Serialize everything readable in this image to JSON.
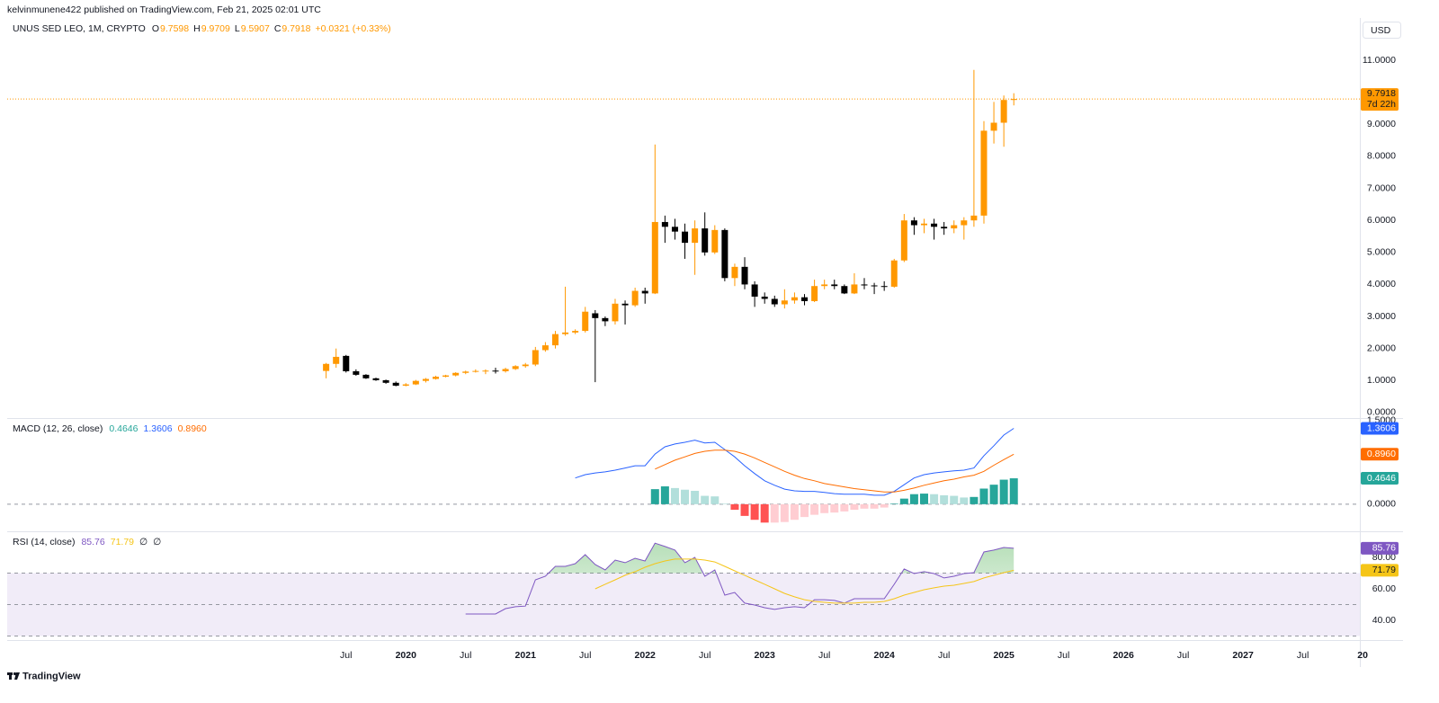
{
  "header": {
    "published": "kelvinmunene422 published on TradingView.com, Feb 21, 2025 02:01 UTC"
  },
  "footer": {
    "brand": "TradingView"
  },
  "chart_data": [
    {
      "type": "candlestick",
      "title": "UNUS SED LEO, 1M, CRYPTO",
      "ohlc_labels": [
        "O",
        "H",
        "L",
        "C"
      ],
      "change": "+0.0321 (+0.33%)",
      "currency": "USD",
      "countdown": "7d 22h",
      "x": [
        "2019-05",
        "2019-06",
        "2019-07",
        "2019-08",
        "2019-09",
        "2019-10",
        "2019-11",
        "2019-12",
        "2020-01",
        "2020-02",
        "2020-03",
        "2020-04",
        "2020-05",
        "2020-06",
        "2020-07",
        "2020-08",
        "2020-09",
        "2020-10",
        "2020-11",
        "2020-12",
        "2021-01",
        "2021-02",
        "2021-03",
        "2021-04",
        "2021-05",
        "2021-06",
        "2021-07",
        "2021-08",
        "2021-09",
        "2021-10",
        "2021-11",
        "2021-12",
        "2022-01",
        "2022-02",
        "2022-03",
        "2022-04",
        "2022-05",
        "2022-06",
        "2022-07",
        "2022-08",
        "2022-09",
        "2022-10",
        "2022-11",
        "2022-12",
        "2023-01",
        "2023-02",
        "2023-03",
        "2023-04",
        "2023-05",
        "2023-06",
        "2023-07",
        "2023-08",
        "2023-09",
        "2023-10",
        "2023-11",
        "2023-12",
        "2024-01",
        "2024-02",
        "2024-03",
        "2024-04",
        "2024-05",
        "2024-06",
        "2024-07",
        "2024-08",
        "2024-09",
        "2024-10",
        "2024-11",
        "2024-12",
        "2025-01",
        "2025-02"
      ],
      "open": [
        1.3,
        1.52,
        1.77,
        1.29,
        1.18,
        1.07,
        1.01,
        0.93,
        0.84,
        0.88,
        0.99,
        1.05,
        1.12,
        1.16,
        1.24,
        1.28,
        1.3,
        1.31,
        1.29,
        1.36,
        1.45,
        1.5,
        1.95,
        2.1,
        2.45,
        2.5,
        2.55,
        3.1,
        2.95,
        2.85,
        3.4,
        3.35,
        3.8,
        3.72,
        5.95,
        5.8,
        5.65,
        5.3,
        5.75,
        5.0,
        5.7,
        4.2,
        4.55,
        4.0,
        3.62,
        3.55,
        3.38,
        3.5,
        3.6,
        3.48,
        3.95,
        4.0,
        3.95,
        3.72,
        4.0,
        3.97,
        3.95,
        3.93,
        4.75,
        6.0,
        5.85,
        5.9,
        5.8,
        5.75,
        5.85,
        6.0,
        6.15,
        8.8,
        9.05,
        9.7598
      ],
      "high": [
        1.55,
        2.0,
        1.8,
        1.35,
        1.2,
        1.09,
        1.03,
        0.97,
        0.92,
        1.02,
        1.08,
        1.15,
        1.18,
        1.26,
        1.31,
        1.35,
        1.35,
        1.4,
        1.4,
        1.48,
        1.55,
        2.05,
        2.2,
        2.55,
        3.93,
        2.6,
        3.3,
        3.2,
        3.0,
        3.55,
        3.5,
        3.9,
        3.9,
        8.37,
        6.15,
        6.05,
        5.9,
        6.0,
        6.25,
        5.85,
        5.75,
        4.65,
        4.85,
        4.1,
        3.75,
        3.65,
        3.85,
        3.75,
        3.7,
        4.15,
        4.15,
        4.15,
        4.0,
        4.35,
        4.2,
        4.05,
        4.1,
        4.8,
        6.2,
        6.1,
        6.05,
        6.05,
        5.95,
        6.0,
        6.1,
        10.7,
        9.1,
        9.7,
        9.9,
        9.9709
      ],
      "low": [
        1.07,
        1.4,
        1.25,
        1.15,
        1.05,
        0.99,
        0.9,
        0.82,
        0.82,
        0.86,
        0.94,
        1.03,
        1.1,
        1.13,
        1.2,
        1.25,
        1.2,
        1.22,
        1.25,
        1.33,
        1.4,
        1.45,
        1.9,
        2.0,
        2.4,
        2.45,
        2.5,
        0.95,
        2.7,
        2.75,
        2.75,
        3.3,
        3.4,
        3.7,
        5.3,
        5.4,
        4.8,
        4.3,
        4.9,
        4.95,
        4.1,
        3.95,
        3.85,
        3.3,
        3.4,
        3.3,
        3.25,
        3.4,
        3.35,
        3.45,
        3.85,
        3.85,
        3.7,
        3.7,
        3.85,
        3.7,
        3.8,
        3.9,
        4.7,
        5.55,
        5.6,
        5.4,
        5.55,
        5.6,
        5.4,
        5.8,
        5.9,
        8.4,
        8.3,
        9.5907
      ],
      "close": [
        1.52,
        1.74,
        1.29,
        1.18,
        1.07,
        1.01,
        0.93,
        0.84,
        0.88,
        0.99,
        1.05,
        1.12,
        1.16,
        1.24,
        1.28,
        1.3,
        1.31,
        1.29,
        1.36,
        1.45,
        1.5,
        1.95,
        2.1,
        2.45,
        2.5,
        2.55,
        3.15,
        2.95,
        2.85,
        3.4,
        3.35,
        3.8,
        3.72,
        5.95,
        5.8,
        5.65,
        5.3,
        5.75,
        5.0,
        5.7,
        4.2,
        4.55,
        4.0,
        3.62,
        3.55,
        3.38,
        3.5,
        3.6,
        3.48,
        3.95,
        4.0,
        3.95,
        3.72,
        4.0,
        3.97,
        3.95,
        3.93,
        4.75,
        6.0,
        5.85,
        5.9,
        5.8,
        5.75,
        5.85,
        6.0,
        6.15,
        8.8,
        9.05,
        9.76,
        9.7918
      ],
      "up_color": "#ff9800",
      "down_color": "#000000",
      "xlim": [
        "2016-09",
        "2027-12"
      ],
      "xticks": [
        {
          "value": "2019-07",
          "label": "Jul"
        },
        {
          "value": "2020-01",
          "label": "2020"
        },
        {
          "value": "2020-07",
          "label": "Jul"
        },
        {
          "value": "2021-01",
          "label": "2021"
        },
        {
          "value": "2021-07",
          "label": "Jul"
        },
        {
          "value": "2022-01",
          "label": "2022"
        },
        {
          "value": "2022-07",
          "label": "Jul"
        },
        {
          "value": "2023-01",
          "label": "2023"
        },
        {
          "value": "2023-07",
          "label": "Jul"
        },
        {
          "value": "2024-01",
          "label": "2024"
        },
        {
          "value": "2024-07",
          "label": "Jul"
        },
        {
          "value": "2025-01",
          "label": "2025"
        },
        {
          "value": "2025-07",
          "label": "Jul"
        },
        {
          "value": "2026-01",
          "label": "2026"
        },
        {
          "value": "2026-07",
          "label": "Jul"
        },
        {
          "value": "2027-01",
          "label": "2027"
        },
        {
          "value": "2027-07",
          "label": "Jul"
        },
        {
          "value": "2028-01",
          "label": "20"
        }
      ],
      "ylim": [
        -0.17,
        12.32
      ],
      "yticks": [
        {
          "value": 0,
          "label": "0.0000"
        },
        {
          "value": 1,
          "label": "1.0000"
        },
        {
          "value": 2,
          "label": "2.0000"
        },
        {
          "value": 3,
          "label": "3.0000"
        },
        {
          "value": 4,
          "label": "4.0000"
        },
        {
          "value": 5,
          "label": "5.0000"
        },
        {
          "value": 6,
          "label": "6.0000"
        },
        {
          "value": 7,
          "label": "7.0000"
        },
        {
          "value": 8,
          "label": "8.0000"
        },
        {
          "value": 9,
          "label": "9.0000"
        },
        {
          "value": 10,
          "label": "10.0000"
        },
        {
          "value": 11,
          "label": "11.0000"
        }
      ]
    },
    {
      "type": "macd",
      "title": "MACD (12, 26, close)",
      "histogram": {
        "colors": [
          "#26a69a",
          "#b2dfdb",
          "#ffcdd2",
          "#ff5252"
        ],
        "values": [
          null,
          null,
          null,
          null,
          null,
          null,
          null,
          null,
          null,
          null,
          null,
          null,
          null,
          null,
          null,
          null,
          null,
          null,
          null,
          null,
          null,
          null,
          null,
          null,
          null,
          null,
          null,
          null,
          null,
          null,
          null,
          null,
          null,
          0.27,
          0.32,
          0.29,
          0.26,
          0.24,
          0.15,
          0.14,
          0.01,
          -0.1,
          -0.21,
          -0.28,
          -0.33,
          -0.33,
          -0.32,
          -0.28,
          -0.23,
          -0.19,
          -0.16,
          -0.15,
          -0.13,
          -0.1,
          -0.08,
          -0.08,
          -0.06,
          0.01,
          0.1,
          0.18,
          0.19,
          0.18,
          0.16,
          0.15,
          0.12,
          0.13,
          0.28,
          0.35,
          0.44,
          0.4646
        ]
      },
      "macd": {
        "color": "#2962ff",
        "values": [
          null,
          null,
          null,
          null,
          null,
          null,
          null,
          null,
          null,
          null,
          null,
          null,
          null,
          null,
          null,
          null,
          null,
          null,
          null,
          null,
          null,
          null,
          null,
          null,
          null,
          0.47,
          0.53,
          0.56,
          0.58,
          0.61,
          0.65,
          0.69,
          0.69,
          0.9,
          1.03,
          1.08,
          1.11,
          1.15,
          1.1,
          1.11,
          0.98,
          0.85,
          0.69,
          0.55,
          0.42,
          0.34,
          0.27,
          0.24,
          0.23,
          0.23,
          0.21,
          0.19,
          0.18,
          0.18,
          0.18,
          0.16,
          0.16,
          0.23,
          0.35,
          0.47,
          0.53,
          0.56,
          0.58,
          0.6,
          0.61,
          0.65,
          0.87,
          1.05,
          1.24,
          1.3606
        ]
      },
      "signal": {
        "color": "#ff6d00",
        "values": [
          null,
          null,
          null,
          null,
          null,
          null,
          null,
          null,
          null,
          null,
          null,
          null,
          null,
          null,
          null,
          null,
          null,
          null,
          null,
          null,
          null,
          null,
          null,
          null,
          null,
          null,
          null,
          null,
          null,
          null,
          null,
          null,
          null,
          0.63,
          0.71,
          0.79,
          0.85,
          0.91,
          0.95,
          0.97,
          0.97,
          0.95,
          0.9,
          0.83,
          0.75,
          0.67,
          0.59,
          0.52,
          0.46,
          0.42,
          0.37,
          0.34,
          0.31,
          0.28,
          0.26,
          0.24,
          0.22,
          0.22,
          0.25,
          0.29,
          0.34,
          0.38,
          0.42,
          0.45,
          0.49,
          0.52,
          0.59,
          0.7,
          0.8,
          0.896
        ],
        "value_labels": [
          null,
          null,
          null,
          null,
          null,
          null,
          null,
          null,
          null,
          null,
          null,
          null,
          null,
          null,
          null,
          null,
          null,
          null,
          null,
          null,
          null,
          null,
          null,
          null,
          null,
          null,
          null,
          null,
          null,
          null,
          null,
          null,
          null,
          null,
          null,
          null,
          null,
          null,
          null,
          null,
          null,
          null,
          null,
          null,
          null,
          null,
          null,
          null,
          null,
          null,
          null,
          null,
          null,
          null,
          null,
          null,
          null,
          null,
          null,
          null,
          null,
          null,
          null,
          null,
          null,
          null,
          null,
          null,
          null,
          "0.8960"
        ]
      },
      "ylim": [
        -0.47,
        1.53
      ],
      "yticks": [
        {
          "value": 1.5,
          "label": "1.5000"
        },
        {
          "value": 0,
          "label": "0.0000"
        }
      ],
      "zero_line": true
    },
    {
      "type": "rsi",
      "title": "RSI (14, close)",
      "rsi": {
        "color": "#7e57c2",
        "values": [
          null,
          null,
          null,
          null,
          null,
          null,
          null,
          null,
          null,
          null,
          null,
          null,
          null,
          null,
          44,
          44,
          44,
          44,
          47.4,
          48.6,
          49,
          65.7,
          68,
          74.3,
          74.3,
          76,
          81.7,
          75.4,
          72,
          78.3,
          76.6,
          79.4,
          77.7,
          89,
          86.9,
          84.6,
          76.6,
          80,
          68,
          72,
          56,
          57.7,
          50.9,
          49.7,
          48,
          46.9,
          48,
          48.6,
          48,
          53.1,
          53.1,
          52.6,
          50.9,
          53.7,
          53.7,
          53.7,
          53.7,
          62.9,
          72.6,
          69.7,
          70.9,
          69.7,
          66.9,
          68,
          69.7,
          70.3,
          83.4,
          84.6,
          86.3,
          85.76
        ]
      },
      "ma": {
        "color": "#f5c518",
        "values": [
          null,
          null,
          null,
          null,
          null,
          null,
          null,
          null,
          null,
          null,
          null,
          null,
          null,
          null,
          null,
          null,
          null,
          null,
          null,
          null,
          null,
          null,
          null,
          null,
          null,
          null,
          null,
          60,
          62.9,
          65.7,
          68.6,
          70.9,
          73.7,
          76,
          77.7,
          78.9,
          78.9,
          78.9,
          78.3,
          77.1,
          74.3,
          71.4,
          68.6,
          65.7,
          62.9,
          60,
          57.1,
          54.9,
          53.1,
          52,
          51.4,
          50.9,
          50.9,
          50.9,
          51.4,
          51.4,
          52,
          53.7,
          56,
          57.7,
          59.4,
          60.6,
          61.7,
          62.3,
          63.4,
          64.6,
          66.9,
          68.6,
          70.3,
          71.79
        ]
      },
      "extra_labels": [
        "∅",
        "∅"
      ],
      "bands": [
        70,
        50,
        30
      ],
      "band_fill": "#ede7f6",
      "overbought_fill": "#4caf50",
      "ylim": [
        29.7,
        96
      ],
      "yticks": [
        {
          "value": 80,
          "label": "80.00"
        },
        {
          "value": 60,
          "label": "60.00"
        },
        {
          "value": 40,
          "label": "40.00"
        }
      ]
    }
  ]
}
